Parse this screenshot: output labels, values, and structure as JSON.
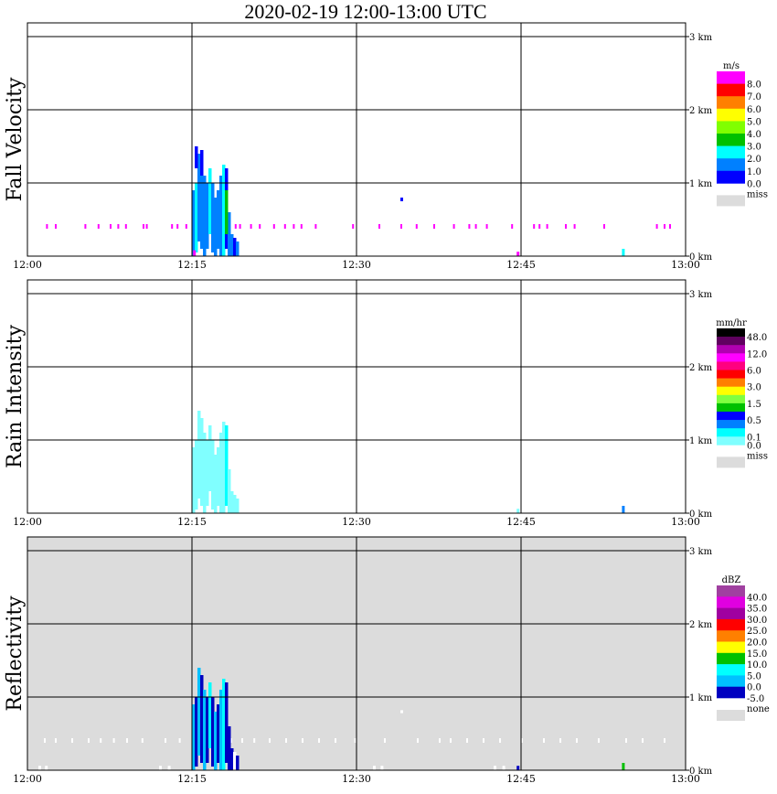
{
  "title": "2020-02-19  12:00-13:00 UTC",
  "chart_data": [
    {
      "type": "heatmap",
      "ylabel": "Fall Velocity",
      "unit": "m/s",
      "xlim_minutes": [
        0,
        60
      ],
      "ylim_km": [
        0,
        3
      ],
      "xticks": [
        "12:00",
        "12:15",
        "12:30",
        "12:45",
        "13:00"
      ],
      "yticks": [
        "3 km",
        "2 km",
        "1 km",
        "0 km"
      ],
      "background": "#ffffff",
      "legend": {
        "colors": [
          "#ff00ff",
          "#ff0000",
          "#ff8000",
          "#ffff00",
          "#80ff00",
          "#00c000",
          "#00ffff",
          "#0080ff",
          "#0000ff"
        ],
        "labels": [
          "8.0",
          "7.0",
          "6.0",
          "5.0",
          "4.0",
          "3.0",
          "2.0",
          "1.0",
          "0.0"
        ],
        "label_start": 1,
        "missing_label": "miss"
      },
      "noise_height_km": 0.4,
      "noise_color": "#ff00ff",
      "noise_times": [
        1.7,
        2.5,
        5.2,
        6.4,
        7.5,
        8.2,
        8.9,
        10.5,
        10.8,
        13.1,
        13.6,
        14.4,
        18.9,
        19.3,
        20.3,
        21.1,
        22.4,
        23.4,
        24.2,
        24.9,
        26.2,
        29.6,
        32.0,
        34.0,
        35.4,
        37.0,
        38.8,
        40.2,
        40.8,
        41.8,
        44.1,
        46.1,
        46.6,
        47.3,
        49.0,
        49.8,
        52.5,
        57.3,
        58.0,
        58.5
      ],
      "extra": [
        [
          34.0,
          0.75,
          0.8,
          "#0000ff"
        ],
        [
          44.6,
          0.0,
          0.06,
          "#ff00ff"
        ],
        [
          54.2,
          0.0,
          0.1,
          "#00ffff"
        ],
        [
          15.1,
          0,
          0.08,
          "#ff00ff"
        ]
      ],
      "columns": [
        [
          15.0,
          0.0,
          0.9,
          "#0080ff"
        ],
        [
          15.25,
          0.05,
          1.0,
          "#00ffff"
        ],
        [
          15.5,
          0.2,
          1.4,
          "#0080ff"
        ],
        [
          15.75,
          0.1,
          1.3,
          "#0080ff"
        ],
        [
          16.0,
          0.0,
          1.1,
          "#0080ff"
        ],
        [
          16.25,
          0.1,
          1.0,
          "#0080ff"
        ],
        [
          16.5,
          0.3,
          1.2,
          "#00ffff"
        ],
        [
          16.75,
          0.05,
          1.0,
          "#0080ff"
        ],
        [
          17.0,
          0.0,
          0.8,
          "#0080ff"
        ],
        [
          17.25,
          0.1,
          0.9,
          "#0080ff"
        ],
        [
          17.5,
          0.0,
          1.1,
          "#0080ff"
        ],
        [
          17.75,
          0.0,
          1.25,
          "#00ffff"
        ],
        [
          18.0,
          0.1,
          1.2,
          "#0000ff"
        ],
        [
          18.25,
          0.0,
          0.6,
          "#0080ff"
        ],
        [
          18.5,
          0.0,
          0.3,
          "#0080ff"
        ],
        [
          18.75,
          0.0,
          0.25,
          "#0000ff"
        ],
        [
          19.0,
          0.0,
          0.2,
          "#0080ff"
        ],
        [
          18.0,
          0.3,
          0.9,
          "#00c000"
        ],
        [
          15.25,
          1.2,
          1.5,
          "#0000ff"
        ],
        [
          15.75,
          1.1,
          1.45,
          "#0000ff"
        ]
      ]
    },
    {
      "type": "heatmap",
      "ylabel": "Rain Intensity",
      "unit": "mm/hr",
      "xlim_minutes": [
        0,
        60
      ],
      "ylim_km": [
        0,
        3
      ],
      "xticks": [
        "12:00",
        "12:15",
        "12:30",
        "12:45",
        "13:00"
      ],
      "yticks": [
        "3 km",
        "2 km",
        "1 km",
        "0 km"
      ],
      "background": "#ffffff",
      "legend": {
        "colors": [
          "#000000",
          "#600060",
          "#b000b0",
          "#ff00ff",
          "#ff0080",
          "#ff0000",
          "#ff8000",
          "#ffff00",
          "#80ff40",
          "#00c000",
          "#0000ff",
          "#0080ff",
          "#00ffff",
          "#80ffff"
        ],
        "labels": [
          "48.0",
          "12.0",
          "6.0",
          "3.0",
          "1.5",
          "0.5",
          "0.1",
          "0.0"
        ],
        "label_positions": [
          1,
          3,
          5,
          7,
          9,
          11,
          13,
          14
        ],
        "missing_label": "miss"
      },
      "noise_times": [],
      "extra": [
        [
          44.6,
          0.0,
          0.06,
          "#80ffff"
        ],
        [
          54.2,
          0.0,
          0.1,
          "#0080ff"
        ]
      ],
      "columns": [
        [
          15.0,
          0.0,
          0.9,
          "#80ffff"
        ],
        [
          15.25,
          0.05,
          1.0,
          "#80ffff"
        ],
        [
          15.5,
          0.2,
          1.4,
          "#80ffff"
        ],
        [
          15.75,
          0.1,
          1.3,
          "#80ffff"
        ],
        [
          16.0,
          0.0,
          1.1,
          "#80ffff"
        ],
        [
          16.25,
          0.1,
          1.0,
          "#80ffff"
        ],
        [
          16.5,
          0.3,
          1.2,
          "#80ffff"
        ],
        [
          16.75,
          0.05,
          1.0,
          "#80ffff"
        ],
        [
          17.0,
          0.0,
          0.8,
          "#80ffff"
        ],
        [
          17.25,
          0.1,
          0.9,
          "#80ffff"
        ],
        [
          17.5,
          0.0,
          1.1,
          "#80ffff"
        ],
        [
          17.75,
          0.0,
          1.25,
          "#80ffff"
        ],
        [
          18.0,
          0.1,
          1.2,
          "#00ffff"
        ],
        [
          18.25,
          0.0,
          0.6,
          "#80ffff"
        ],
        [
          18.5,
          0.0,
          0.3,
          "#80ffff"
        ],
        [
          18.75,
          0.0,
          0.25,
          "#80ffff"
        ],
        [
          19.0,
          0.0,
          0.2,
          "#80ffff"
        ]
      ]
    },
    {
      "type": "heatmap",
      "ylabel": "Reflectivity",
      "unit": "dBZ",
      "xlim_minutes": [
        0,
        60
      ],
      "ylim_km": [
        0,
        3
      ],
      "xticks": [
        "12:00",
        "12:15",
        "12:30",
        "12:45",
        "13:00"
      ],
      "yticks": [
        "3 km",
        "2 km",
        "1 km",
        "0 km"
      ],
      "background": "#dcdcdc",
      "legend": {
        "colors": [
          "#a040a0",
          "#e000e0",
          "#a000a0",
          "#ff0000",
          "#ff8000",
          "#ffff00",
          "#00c000",
          "#00ffff",
          "#00c0ff",
          "#0000c0"
        ],
        "labels": [
          "40.0",
          "35.0",
          "30.0",
          "25.0",
          "20.0",
          "15.0",
          "10.0",
          "5.0",
          "0.0",
          "-5.0"
        ],
        "label_start": 1,
        "missing_label": "none"
      },
      "noise_height_km": 0.4,
      "noise_color": "#ffffff",
      "noise_times": [
        1.5,
        2.5,
        4.0,
        5.5,
        6.6,
        7.8,
        9.0,
        10.4,
        12.5,
        13.8,
        18.5,
        19.5,
        20.6,
        22.0,
        23.5,
        25.0,
        26.5,
        28.0,
        29.8,
        32.5,
        35.5,
        37.5,
        38.5,
        40.0,
        41.5,
        43.0,
        45.0,
        47.0,
        48.5,
        50.0,
        52.0,
        54.5,
        56.0,
        58.0
      ],
      "extra": [
        [
          34.0,
          0.78,
          0.82,
          "#ffffff"
        ],
        [
          1.0,
          0.0,
          0.06,
          "#ffffff"
        ],
        [
          1.6,
          0.0,
          0.06,
          "#ffffff"
        ],
        [
          12.0,
          0.0,
          0.06,
          "#ffffff"
        ],
        [
          12.8,
          0.0,
          0.06,
          "#ffffff"
        ],
        [
          31.5,
          0.0,
          0.06,
          "#ffffff"
        ],
        [
          32.2,
          0.0,
          0.06,
          "#ffffff"
        ],
        [
          42.5,
          0.0,
          0.06,
          "#ffffff"
        ],
        [
          43.3,
          0.0,
          0.06,
          "#ffffff"
        ],
        [
          44.6,
          0.0,
          0.06,
          "#0000c0"
        ],
        [
          54.2,
          0.0,
          0.1,
          "#00c000"
        ]
      ],
      "columns": [
        [
          15.0,
          0.0,
          0.9,
          "#00c0ff"
        ],
        [
          15.25,
          0.05,
          1.0,
          "#0000c0"
        ],
        [
          15.5,
          0.2,
          1.4,
          "#00c0ff"
        ],
        [
          15.75,
          0.1,
          1.3,
          "#0000c0"
        ],
        [
          16.0,
          0.0,
          1.1,
          "#00c0ff"
        ],
        [
          16.25,
          0.1,
          1.0,
          "#0000c0"
        ],
        [
          16.5,
          0.3,
          1.2,
          "#00ffff"
        ],
        [
          16.75,
          0.05,
          1.0,
          "#0000c0"
        ],
        [
          17.0,
          0.0,
          0.8,
          "#00c0ff"
        ],
        [
          17.25,
          0.1,
          0.9,
          "#0000c0"
        ],
        [
          17.5,
          0.0,
          1.1,
          "#00c0ff"
        ],
        [
          17.75,
          0.0,
          1.25,
          "#00ffff"
        ],
        [
          18.0,
          0.1,
          1.2,
          "#0000c0"
        ],
        [
          18.25,
          0.0,
          0.6,
          "#0000c0"
        ],
        [
          18.5,
          0.0,
          0.3,
          "#0000c0"
        ],
        [
          18.75,
          0.0,
          0.25,
          "#ffffff"
        ],
        [
          19.0,
          0.0,
          0.2,
          "#0000c0"
        ]
      ]
    }
  ]
}
